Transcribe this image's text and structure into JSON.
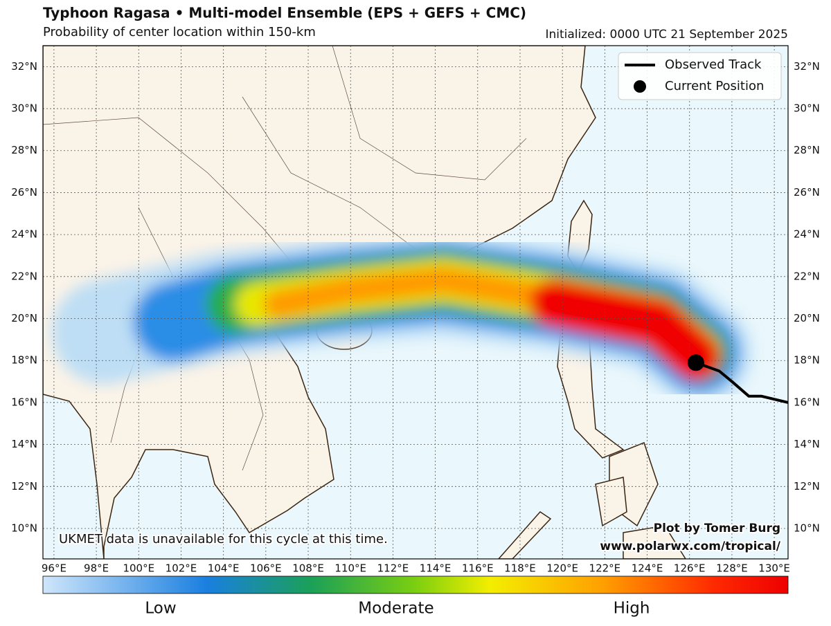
{
  "map": {
    "title": "Typhoon Ragasa • Multi-model Ensemble (EPS + GEFS + CMC)",
    "subtitle": "Probability of center location within 150-km",
    "initialized": "Initialized: 0000 UTC 21 September 2025",
    "xlim": [
      95.48,
      130.65
    ],
    "ylim": [
      8.55,
      33.0
    ],
    "xticks": [
      {
        "value": 96,
        "label": "96°E"
      },
      {
        "value": 98,
        "label": "98°E"
      },
      {
        "value": 100,
        "label": "100°E"
      },
      {
        "value": 102,
        "label": "102°E"
      },
      {
        "value": 104,
        "label": "104°E"
      },
      {
        "value": 106,
        "label": "106°E"
      },
      {
        "value": 108,
        "label": "108°E"
      },
      {
        "value": 110,
        "label": "110°E"
      },
      {
        "value": 112,
        "label": "112°E"
      },
      {
        "value": 114,
        "label": "114°E"
      },
      {
        "value": 116,
        "label": "116°E"
      },
      {
        "value": 118,
        "label": "118°E"
      },
      {
        "value": 120,
        "label": "120°E"
      },
      {
        "value": 122,
        "label": "122°E"
      },
      {
        "value": 124,
        "label": "124°E"
      },
      {
        "value": 126,
        "label": "126°E"
      },
      {
        "value": 128,
        "label": "128°E"
      },
      {
        "value": 130,
        "label": "130°E"
      }
    ],
    "yticks": [
      {
        "value": 10,
        "label": "10°N"
      },
      {
        "value": 12,
        "label": "12°N"
      },
      {
        "value": 14,
        "label": "14°N"
      },
      {
        "value": 16,
        "label": "16°N"
      },
      {
        "value": 18,
        "label": "18°N"
      },
      {
        "value": 20,
        "label": "20°N"
      },
      {
        "value": 22,
        "label": "22°N"
      },
      {
        "value": 24,
        "label": "24°N"
      },
      {
        "value": 26,
        "label": "26°N"
      },
      {
        "value": 28,
        "label": "28°N"
      },
      {
        "value": 30,
        "label": "30°N"
      },
      {
        "value": 32,
        "label": "32°N"
      }
    ],
    "observed_track": {
      "name": "Observed Track",
      "color": "#000000",
      "lon": [
        126.3,
        127.4,
        128.0,
        128.8,
        129.4,
        130.65
      ],
      "lat": [
        17.9,
        17.5,
        17.0,
        16.3,
        16.3,
        16.0
      ]
    },
    "current_position": {
      "name": "Current Position",
      "color": "#000000",
      "lon": 126.3,
      "lat": 17.9
    },
    "notice": "UKMET data is unavailable for this cycle at this time.",
    "credit": "Plot by Tomer Burg",
    "website": "www.polarwx.com/tropical/",
    "colorbar_labels": [
      "Low",
      "Moderate",
      "High"
    ]
  }
}
